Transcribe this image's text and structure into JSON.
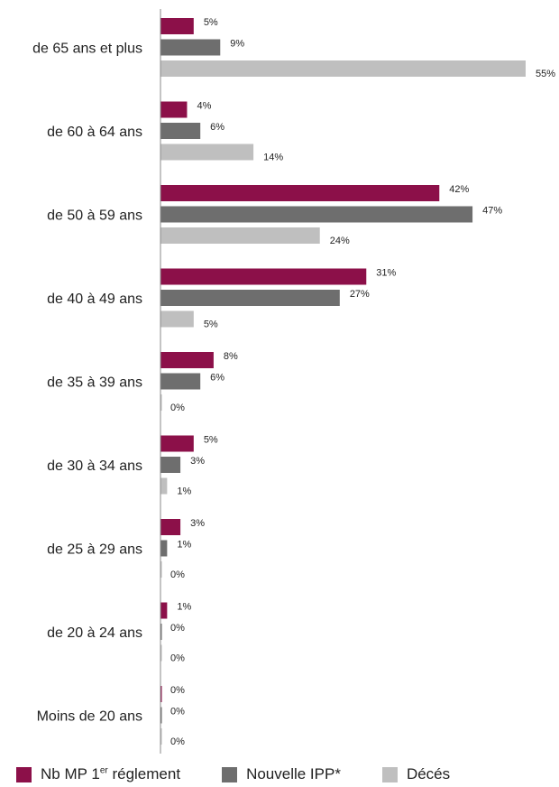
{
  "chart_data": {
    "type": "bar",
    "orientation": "horizontal",
    "categories": [
      "de 65 ans  et plus",
      "de 60 à 64 ans",
      "de 50 à 59 ans",
      "de 40 à 49 ans",
      "de 35 à 39 ans",
      "de 30 à 34 ans",
      "de 25 à 29 ans",
      "de 20 à 24 ans",
      "Moins de 20 ans"
    ],
    "series": [
      {
        "name": "Nb MP 1er réglement",
        "color": "#8c1049",
        "values": [
          5,
          4,
          42,
          31,
          8,
          5,
          3,
          1,
          0
        ]
      },
      {
        "name": "Nouvelle IPP*",
        "color": "#6e6e6e",
        "values": [
          9,
          6,
          47,
          27,
          6,
          3,
          1,
          0,
          0
        ]
      },
      {
        "name": "Décés",
        "color": "#bfbfbf",
        "values": [
          55,
          14,
          24,
          5,
          0,
          1,
          0,
          0,
          0
        ]
      }
    ],
    "value_suffix": "%",
    "xlim": [
      0,
      55
    ],
    "grid": false,
    "legend_position": "bottom"
  },
  "legend": {
    "item1_main": "Nb MP 1",
    "item1_sup": "er",
    "item1_rest": " réglement",
    "item2": "Nouvelle IPP*",
    "item3": "Décés"
  }
}
